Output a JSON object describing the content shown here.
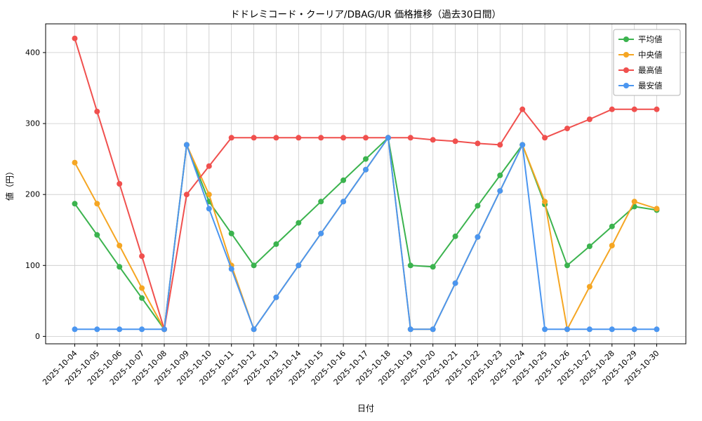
{
  "chart_data": {
    "type": "line",
    "title": "ドドレミコード・クーリア/DBAG/UR 価格推移（過去30日間）",
    "xlabel": "日付",
    "ylabel": "値（円）",
    "grid": true,
    "legend_position": "upper right",
    "background": "#ffffff",
    "yticks": [
      0,
      100,
      200,
      300,
      400
    ],
    "ylim": [
      -10.5,
      440.5
    ],
    "x": [
      "2025-10-04",
      "2025-10-05",
      "2025-10-06",
      "2025-10-07",
      "2025-10-08",
      "2025-10-09",
      "2025-10-10",
      "2025-10-11",
      "2025-10-12",
      "2025-10-13",
      "2025-10-14",
      "2025-10-15",
      "2025-10-16",
      "2025-10-17",
      "2025-10-18",
      "2025-10-19",
      "2025-10-20",
      "2025-10-21",
      "2025-10-22",
      "2025-10-23",
      "2025-10-24",
      "2025-10-25",
      "2025-10-26",
      "2025-10-27",
      "2025-10-28",
      "2025-10-29",
      "2025-10-30"
    ],
    "series": [
      {
        "key": "average",
        "name": "平均値",
        "color": "#3bb34e",
        "values": [
          187,
          143,
          98,
          54,
          10,
          270,
          190,
          145,
          100,
          130,
          160,
          190,
          220,
          250,
          280,
          100,
          98,
          141,
          184,
          227,
          270,
          186,
          100,
          127,
          155,
          183,
          178
        ]
      },
      {
        "key": "median",
        "name": "中央値",
        "color": "#f5a623",
        "values": [
          245,
          187,
          128,
          68,
          10,
          270,
          200,
          100,
          10,
          55,
          100,
          145,
          190,
          235,
          280,
          10,
          10,
          75,
          140,
          205,
          270,
          190,
          10,
          70,
          128,
          190,
          180
        ]
      },
      {
        "key": "highest",
        "name": "最高値",
        "color": "#f0504e",
        "values": [
          420,
          317,
          215,
          113,
          10,
          200,
          240,
          280,
          280,
          280,
          280,
          280,
          280,
          280,
          280,
          280,
          277,
          275,
          272,
          270,
          320,
          280,
          293,
          306,
          320,
          320,
          320
        ]
      },
      {
        "key": "lowest",
        "name": "最安値",
        "color": "#4b96f0",
        "values": [
          10,
          10,
          10,
          10,
          10,
          270,
          180,
          95,
          10,
          55,
          100,
          145,
          190,
          235,
          280,
          10,
          10,
          75,
          140,
          205,
          270,
          10,
          10,
          10,
          10,
          10,
          10
        ]
      }
    ]
  }
}
